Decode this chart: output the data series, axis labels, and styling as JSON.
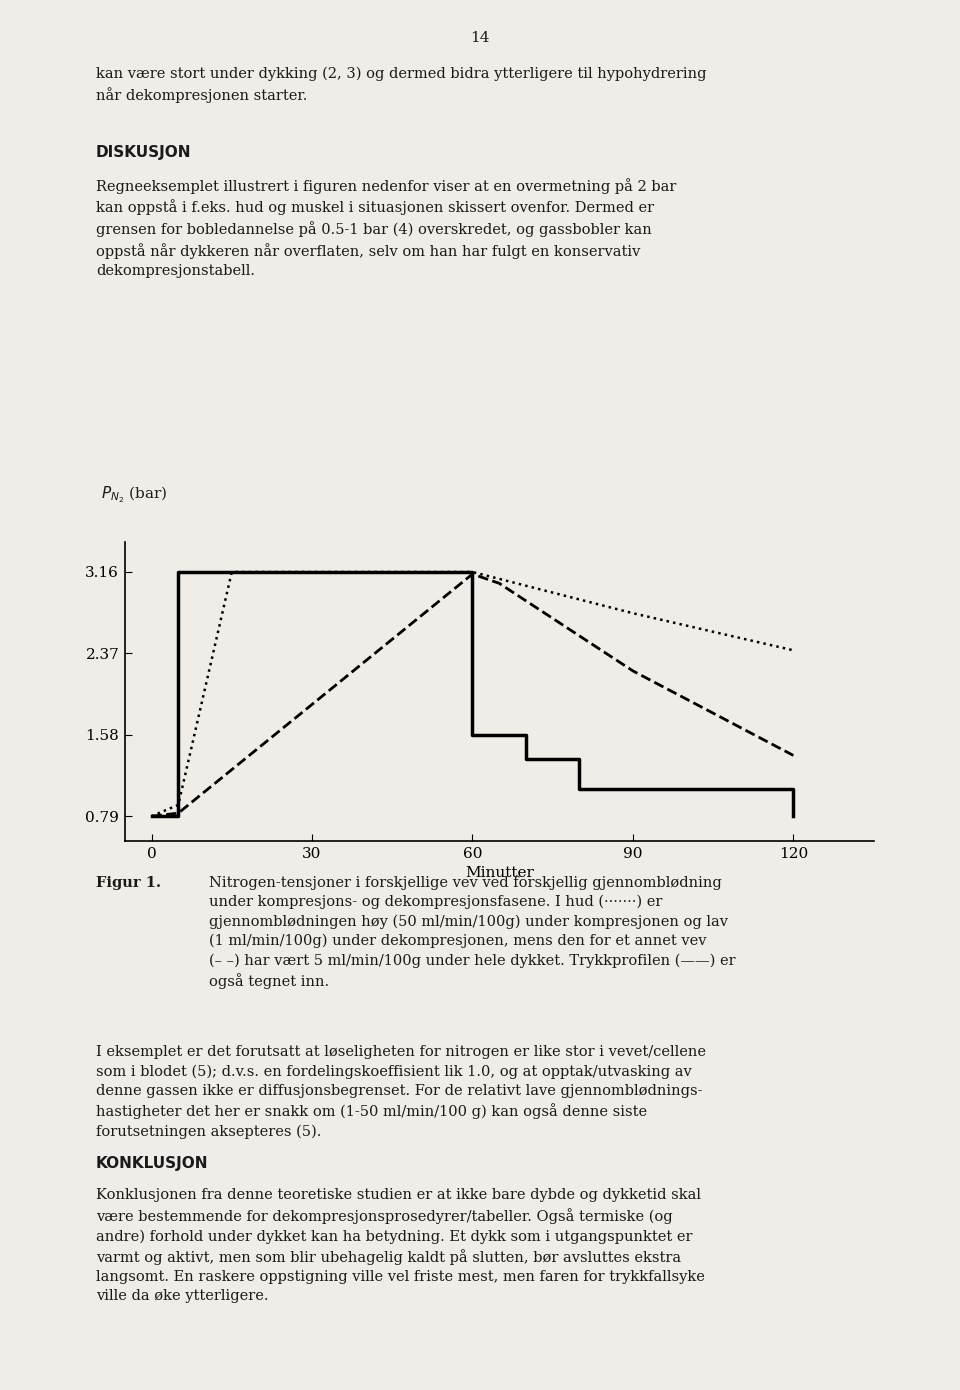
{
  "page_number": "14",
  "background_color": "#f0ede8",
  "text_color": "#1a1a1a",
  "top_text": "kan være stort under dykking (2, 3) og dermed bidra ytterligere til hypohydrering\nnår dekompresjonen starter.",
  "diskusjon_title": "DISKUSJON",
  "diskusjon_body": "Regneeksemplet illustrert i figuren nedenfor viser at en overmetning på 2 bar\nkan oppstå i f.eks. hud og muskel i situasjonen skissert ovenfor. Dermed er\ngrensen for bobledannelse på 0.5-1 bar (4) overskredet, og gassbobler kan\noppstå når dykkeren når overflaten, selv om han har fulgt en konservativ\ndekompresjonstabell.",
  "xlabel": "Minutter",
  "ytick_labels": [
    "0.79",
    "1.58",
    "2.37",
    "3.16"
  ],
  "ytick_vals": [
    0.79,
    1.58,
    2.37,
    3.16
  ],
  "xtick_vals": [
    0,
    30,
    60,
    90,
    120
  ],
  "ylim": [
    0.55,
    3.45
  ],
  "xlim": [
    -5,
    135
  ],
  "pressure_x": [
    0,
    5,
    5,
    60,
    60,
    70,
    70,
    80,
    80,
    120,
    120
  ],
  "pressure_y": [
    0.79,
    0.79,
    3.16,
    3.16,
    1.58,
    1.58,
    1.35,
    1.35,
    1.05,
    1.05,
    0.79
  ],
  "dotted_x": [
    0,
    5,
    15,
    60,
    90,
    120
  ],
  "dotted_y": [
    0.79,
    0.9,
    3.16,
    3.16,
    2.76,
    2.4
  ],
  "dashed_x": [
    0,
    5,
    60,
    65,
    90,
    120
  ],
  "dashed_y": [
    0.79,
    0.82,
    3.14,
    3.05,
    2.2,
    1.38
  ],
  "caption_bold": "Figur 1.",
  "caption_line1": "Nitrogen-tensjoner i forskjellige vev ved forskjellig gjennomblødning",
  "caption_line2": "under kompresjons- og dekompresjonsfasene. I hud (·······) er",
  "caption_line3": "gjennomblødningen høy (50 ml/min/100g) under kompresjonen og lav",
  "caption_line4": "(1 ml/min/100g) under dekompresjonen, mens den for et annet vev",
  "caption_line5": "(– –) har vært 5 ml/min/100g under hele dykket. Trykkprofilen (——) er",
  "caption_line6": "også tegnet inn.",
  "body_text": "I eksemplet er det forutsatt at løseligheten for nitrogen er like stor i vevet/cellene\nsom i blodet (5); d.v.s. en fordelingskoeffisient lik 1.0, og at opptak/utvasking av\ndenne gassen ikke er diffusjonsbegrenset. For de relativt lave gjennomblødnings-\nhastigheter det her er snakk om (1-50 ml/min/100 g) kan også denne siste\nforutsetningen aksepteres (5).",
  "konklusjon_title": "KONKLUSJON",
  "konklusjon_body": "Konklusjonen fra denne teoretiske studien er at ikke bare dybde og dykketid skal\nvære bestemmende for dekompresjonsprosedyrer/tabeller. Også termiske (og\nandre) forhold under dykket kan ha betydning. Et dykk som i utgangspunktet er\nvarmt og aktivt, men som blir ubehagelig kaldt på slutten, bør avsluttes ekstra\nlangsomt. En raskere oppstigning ville vel friste mest, men faren for trykkfallsyke\nville da øke ytterligere."
}
